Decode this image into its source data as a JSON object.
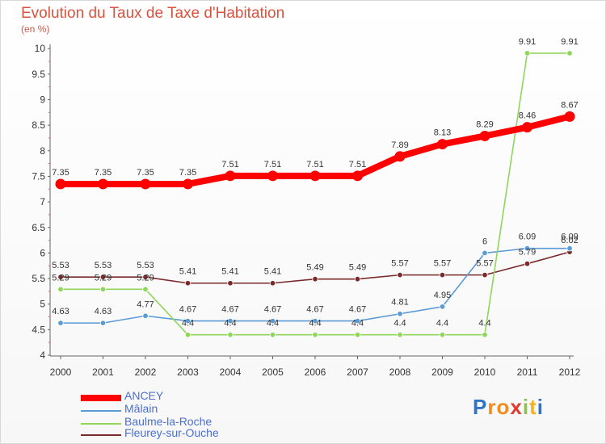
{
  "title": "Evolution du Taux de Taxe d'Habitation",
  "subtitle": "(en %)",
  "chart_data": {
    "type": "line",
    "title": "Evolution du Taux de Taxe d'Habitation",
    "subtitle": "(en %)",
    "x": [
      "2000",
      "2001",
      "2002",
      "2003",
      "2004",
      "2005",
      "2006",
      "2007",
      "2008",
      "2009",
      "2010",
      "2011",
      "2012"
    ],
    "ylim": [
      4,
      10
    ],
    "yticks": [
      "4",
      "4.5",
      "5",
      "5.5",
      "6",
      "6.5",
      "7",
      "7.5",
      "8",
      "8.5",
      "9",
      "9.5",
      "10"
    ],
    "grid": false,
    "legend_position": "bottom-left",
    "series": [
      {
        "name": "ANCEY",
        "color": "#ff0000",
        "values": [
          7.35,
          7.35,
          7.35,
          7.35,
          7.51,
          7.51,
          7.51,
          7.51,
          7.89,
          8.13,
          8.29,
          8.46,
          8.67
        ],
        "labels": [
          "7.35",
          "7.35",
          "7.35",
          "7.35",
          "7.51",
          "7.51",
          "7.51",
          "7.51",
          "7.89",
          "8.13",
          "8.29",
          "8.46",
          "8.67"
        ]
      },
      {
        "name": "Mâlain",
        "color": "#5b9bd5",
        "values": [
          4.63,
          4.63,
          4.77,
          4.67,
          4.67,
          4.67,
          4.67,
          4.67,
          4.81,
          4.95,
          6.0,
          6.09,
          6.09
        ],
        "labels": [
          "4.63",
          "4.63",
          "4.77",
          "4.67",
          "4.67",
          "4.67",
          "4.67",
          "4.67",
          "4.81",
          "4.95",
          "6",
          "6.09",
          "6.09"
        ]
      },
      {
        "name": "Baulme-la-Roche",
        "color": "#8fd65b",
        "values": [
          5.29,
          5.29,
          5.29,
          4.4,
          4.4,
          4.4,
          4.4,
          4.4,
          4.4,
          4.4,
          4.4,
          9.91,
          9.91
        ],
        "labels": [
          "5.29",
          "5.29",
          "5.29",
          "4.4",
          "4.4",
          "4.4",
          "4.4",
          "4.4",
          "4.4",
          "4.4",
          "4.4",
          "9.91",
          "9.91"
        ]
      },
      {
        "name": "Fleurey-sur-Ouche",
        "color": "#7a2a2a",
        "values": [
          5.53,
          5.53,
          5.53,
          5.41,
          5.41,
          5.41,
          5.49,
          5.49,
          5.57,
          5.57,
          5.57,
          5.79,
          6.02
        ],
        "labels": [
          "5.53",
          "5.53",
          "5.53",
          "5.41",
          "5.41",
          "5.41",
          "5.49",
          "5.49",
          "5.57",
          "5.57",
          "5.57",
          "5.79",
          "6.02"
        ]
      }
    ]
  },
  "logo": {
    "letters": [
      "P",
      "r",
      "o",
      "x",
      "i",
      "t",
      "i"
    ],
    "colors": [
      "#2e74c9",
      "#f28c1e",
      "#f28c1e",
      "#e23a2f",
      "#8bc34a",
      "#f2b21e",
      "#2e74c9"
    ]
  }
}
